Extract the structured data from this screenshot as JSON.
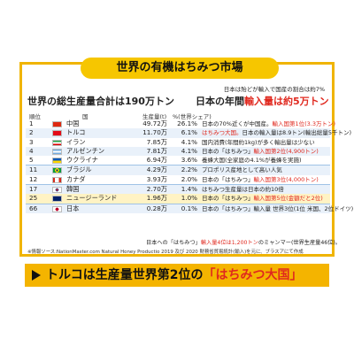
{
  "title": "世界の有機はちみつ市場",
  "note": "日本は殆どが輸入で国産の割合は約7%",
  "subtitle_left": "世界の総生産量合計は190万トン",
  "subtitle_right_prefix": "日本の年間",
  "subtitle_right_highlight": "輸入量は約5万トン",
  "headers": {
    "rank": "順位",
    "country": "国",
    "production": "生産量(t)",
    "share": "%(世界シェア)"
  },
  "rows": [
    {
      "rank": "1",
      "country": "中国",
      "production": "49.72万",
      "share": "26.1%",
      "comment": "日本の70%近くが中国産。",
      "comment_red": "輸入国第1位(3.3万トン)",
      "comment_after": ""
    },
    {
      "rank": "2",
      "country": "トルコ",
      "production": "11.70万",
      "share": "6.1%",
      "comment": "",
      "comment_red": "はちみつ大国。",
      "comment_after": "日本の輸入量は8.9トン(輸出総量5千トン)"
    },
    {
      "rank": "3",
      "country": "イラン",
      "production": "7.85万",
      "share": "4.1%",
      "comment": "国内消費(年間約1kg)が多く輸出量は少ない",
      "comment_red": "",
      "comment_after": ""
    },
    {
      "rank": "4",
      "country": "アルゼンチン",
      "production": "7.81万",
      "share": "4.1%",
      "comment": "日本の「はちみつ」",
      "comment_red": "輸入国第2位(4,900トン)",
      "comment_after": ""
    },
    {
      "rank": "5",
      "country": "ウクライナ",
      "production": "6.94万",
      "share": "3.6%",
      "comment": "養蜂大国(全家庭の4.1%が養蜂を実施)",
      "comment_red": "",
      "comment_after": ""
    },
    {
      "rank": "11",
      "country": "ブラジル",
      "production": "4.29万",
      "share": "2.2%",
      "comment": "プロポリス産地として高い人気",
      "comment_red": "",
      "comment_after": ""
    },
    {
      "rank": "12",
      "country": "カナダ",
      "production": "3.93万",
      "share": "2.0%",
      "comment": "日本の「はちみつ」",
      "comment_red": "輸入国第3位(4,000トン)",
      "comment_after": ""
    },
    {
      "rank": "17",
      "country": "韓国",
      "production": "2.70万",
      "share": "1.4%",
      "comment": "はちみつ生産量は日本の約10倍",
      "comment_red": "",
      "comment_after": ""
    },
    {
      "rank": "25",
      "country": "ニュージーランド",
      "production": "1.96万",
      "share": "1.0%",
      "comment": "日本の「はちみつ」",
      "comment_red": "輸入国第5位(金額だと2位)",
      "comment_after": ""
    },
    {
      "rank": "66",
      "country": "日本",
      "production": "0.28万",
      "share": "0.1%",
      "comment": "日本の「はちみつ」輸入量 世界3位(1位 米国、2位ドイツ)",
      "comment_red": "",
      "comment_after": ""
    }
  ],
  "footnote_prefix": "日本への「はちみつ」",
  "footnote_red": "輸入量4位は1,200トン",
  "footnote_after": "のミャンマー(世界生産量46位)。",
  "source": "※情報ソース:NationMaster.com Natural Honey Productio 2019 及び 2020 財務省貿易統計(輸入)を元に、ブラスアにて作成",
  "banner_prefix": "トルコは生産量世界第2位の",
  "banner_highlight": "「はちみつ大国」",
  "colors": {
    "accent": "#f6c600",
    "red": "#e0281e",
    "row_alt": "#e9f1fa"
  },
  "flags": [
    "china-flag",
    "turkey-flag",
    "iran-flag",
    "argentina-flag",
    "ukraine-flag",
    "brazil-flag",
    "canada-flag",
    "korea-flag",
    "new-zealand-flag",
    "japan-flag"
  ]
}
